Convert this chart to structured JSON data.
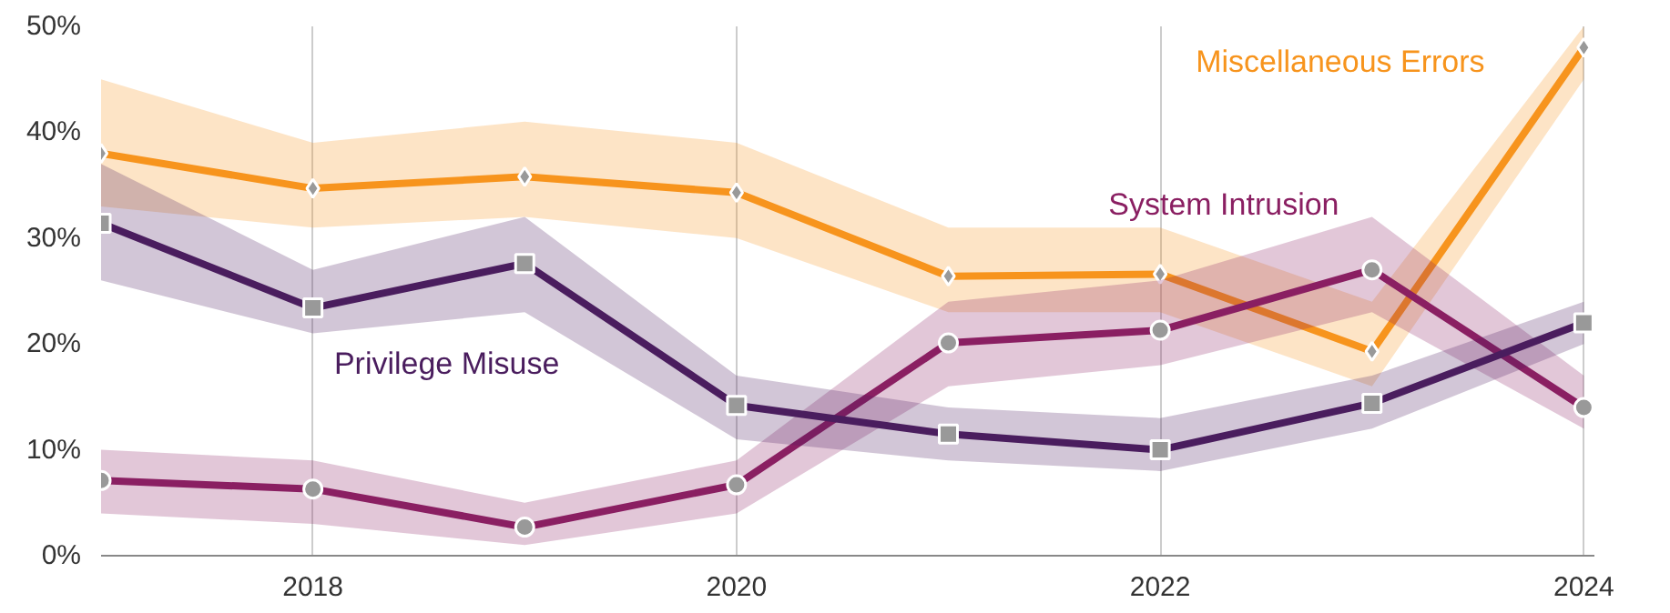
{
  "chart_data": {
    "type": "line",
    "x": [
      2017,
      2018,
      2019,
      2020,
      2021,
      2022,
      2023,
      2024
    ],
    "series": [
      {
        "name": "Miscellaneous Errors",
        "color": "#f7941d",
        "marker": "diamond",
        "values": [
          38,
          34.7,
          35.8,
          34.3,
          26.4,
          26.6,
          19.3,
          48
        ],
        "lower": [
          33,
          31,
          32,
          30,
          23,
          23,
          16,
          45
        ],
        "upper": [
          45,
          39,
          41,
          39,
          31,
          31,
          24,
          50
        ]
      },
      {
        "name": "System Intrusion",
        "color": "#8a1f62",
        "marker": "circle",
        "values": [
          7.1,
          6.3,
          2.7,
          6.7,
          20.1,
          21.3,
          27,
          14
        ],
        "lower": [
          4,
          3,
          1,
          4,
          16,
          18,
          23,
          12
        ],
        "upper": [
          10,
          9,
          5,
          9,
          24,
          26,
          32,
          17
        ]
      },
      {
        "name": "Privilege Misuse",
        "color": "#4a1d5e",
        "marker": "square",
        "values": [
          31.4,
          23.4,
          27.6,
          14.2,
          11.5,
          10,
          14.4,
          22
        ],
        "lower": [
          26,
          21,
          23,
          11,
          9,
          8,
          12,
          20
        ],
        "upper": [
          37,
          27,
          32,
          17,
          14,
          13,
          17,
          24
        ]
      }
    ],
    "xlim": [
      2017,
      2024.05
    ],
    "xticks": [
      2018,
      2020,
      2022,
      2024
    ],
    "ylim": [
      0,
      50
    ],
    "yticks": [
      {
        "value": 0,
        "label": "0%"
      },
      {
        "value": 10,
        "label": "10%"
      },
      {
        "value": 20,
        "label": "20%"
      },
      {
        "value": 30,
        "label": "30%"
      },
      {
        "value": 40,
        "label": "40%"
      },
      {
        "value": 50,
        "label": "50%"
      }
    ],
    "grid": "x",
    "line_style": "solid"
  }
}
